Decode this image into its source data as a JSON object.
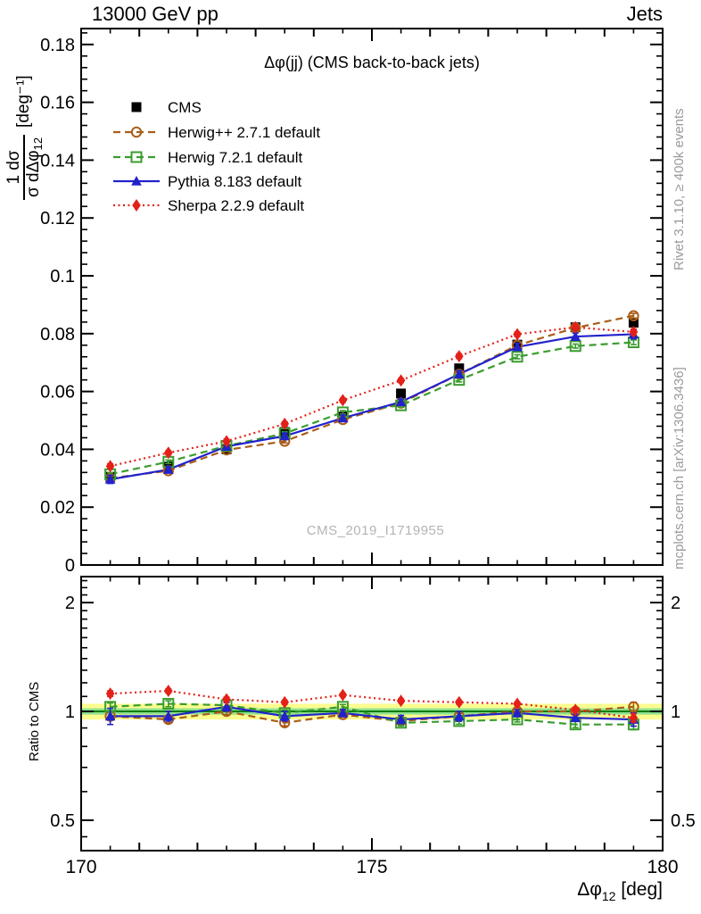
{
  "header": {
    "beam": "13000 GeV pp",
    "category": "Jets"
  },
  "side_notes": {
    "generator_info": "Rivet 3.1.10, ≥ 400k events",
    "source": "mcplots.cern.ch [arXiv:1306.3436]"
  },
  "watermark": "CMS_2019_I1719955",
  "axes": {
    "y_label": {
      "num": "1 dσ",
      "den_main": "σ dΔφ",
      "den_sub": "12",
      "units": "[deg⁻¹]"
    },
    "x_label": {
      "main": "Δφ",
      "sub": "12",
      "suffix": " [deg]"
    },
    "ratio_label": "Ratio to CMS"
  },
  "colors": {
    "cms": "#000000",
    "herwigpp": "#aa5d18",
    "herwig7": "#3b9c2e",
    "pythia": "#2222cc",
    "sherpa": "#e32119",
    "band_outer": "#fcfc8f",
    "band_inner": "#8fe18f",
    "reference_line": "#0b7d0b",
    "gray_text": "#9b9b9b"
  },
  "chart_data": [
    {
      "type": "line",
      "title": "Δφ(jj) (CMS back-to-back jets)",
      "xlabel": "Δφ_12 [deg]",
      "ylabel": "1/σ dσ/dΔφ_12 [deg^-1]",
      "xlim": [
        170,
        180
      ],
      "ylim": [
        0,
        0.1855
      ],
      "grid": false,
      "legend_position": "top-left-inside",
      "xticks": {
        "values": [
          170,
          175,
          180
        ],
        "labels": [
          "170",
          "175",
          "180"
        ]
      },
      "yticks": {
        "values": [
          0,
          0.02,
          0.04,
          0.06,
          0.08,
          0.1,
          0.12,
          0.14,
          0.16,
          0.18
        ],
        "labels": [
          "0",
          "0.02",
          "0.04",
          "0.06",
          "0.08",
          "0.1",
          "0.12",
          "0.14",
          "0.16",
          "0.18"
        ]
      },
      "x": [
        170.5,
        171.5,
        172.5,
        173.5,
        174.5,
        175.5,
        176.5,
        177.5,
        178.5,
        179.5
      ],
      "series": [
        {
          "name": "CMS",
          "color": "#000000",
          "marker": "filled-square",
          "line": "none",
          "values": [
            0.0305,
            0.034,
            0.04,
            0.046,
            0.0513,
            0.0593,
            0.068,
            0.0762,
            0.0822,
            0.0838
          ],
          "errors": [
            0.001,
            0.0009,
            0.0009,
            0.0009,
            0.001,
            0.0011,
            0.0012,
            0.0012,
            0.0013,
            0.0014
          ]
        },
        {
          "name": "Herwig++ 2.7.1 default",
          "color": "#aa5d18",
          "marker": "open-circle",
          "line": "dashed",
          "values": [
            0.03,
            0.0326,
            0.0398,
            0.0428,
            0.0503,
            0.056,
            0.066,
            0.076,
            0.082,
            0.0862
          ],
          "errors": [
            0.0006,
            0.0006,
            0.0006,
            0.0006,
            0.0006,
            0.0006,
            0.0007,
            0.0007,
            0.0007,
            0.0008
          ]
        },
        {
          "name": "Herwig 7.2.1 default",
          "color": "#3b9c2e",
          "marker": "open-square",
          "line": "dashed",
          "values": [
            0.0314,
            0.0357,
            0.0412,
            0.0455,
            0.0528,
            0.0552,
            0.064,
            0.072,
            0.0757,
            0.077
          ],
          "errors": [
            0.0006,
            0.0006,
            0.0006,
            0.0006,
            0.0006,
            0.0006,
            0.0007,
            0.0007,
            0.0007,
            0.0008
          ]
        },
        {
          "name": "Pythia 8.183 default",
          "color": "#2222cc",
          "marker": "filled-triangle",
          "line": "solid",
          "values": [
            0.0296,
            0.033,
            0.041,
            0.0446,
            0.0508,
            0.0564,
            0.066,
            0.0754,
            0.079,
            0.0798
          ],
          "errors": [
            0.0014,
            0.001,
            0.001,
            0.001,
            0.001,
            0.001,
            0.0012,
            0.0012,
            0.0012,
            0.0016
          ]
        },
        {
          "name": "Sherpa 2.2.9 default",
          "color": "#e32119",
          "marker": "filled-diamond",
          "line": "dotted",
          "values": [
            0.0342,
            0.0388,
            0.0428,
            0.0488,
            0.057,
            0.0638,
            0.0722,
            0.0798,
            0.0822,
            0.0806
          ],
          "errors": [
            0.0008,
            0.0007,
            0.0007,
            0.0007,
            0.0007,
            0.0007,
            0.0008,
            0.0008,
            0.0008,
            0.001
          ]
        }
      ]
    },
    {
      "type": "line",
      "title": "",
      "ylabel": "Ratio to CMS",
      "yscale": "log",
      "xlim": [
        170,
        180
      ],
      "ylim": [
        0.412,
        2.36
      ],
      "xticks": {
        "values": [
          170,
          175,
          180
        ],
        "labels": [
          "170",
          "175",
          "180"
        ]
      },
      "yticks": {
        "values": [
          0.5,
          1,
          2
        ],
        "labels": [
          "0.5",
          "1",
          "2"
        ]
      },
      "reference": {
        "line": 1,
        "inner_band": [
          0.98,
          1.02
        ],
        "outer_band": [
          0.95,
          1.05
        ]
      },
      "x": [
        170.5,
        171.5,
        172.5,
        173.5,
        174.5,
        175.5,
        176.5,
        177.5,
        178.5,
        179.5
      ],
      "series": [
        {
          "name": "Herwig++ 2.7.1 default",
          "color": "#aa5d18",
          "marker": "open-circle",
          "line": "dashed",
          "values": [
            0.97,
            0.95,
            1.0,
            0.93,
            0.98,
            0.94,
            0.97,
            1.0,
            1.0,
            1.03
          ],
          "errors": [
            0.025,
            0.02,
            0.02,
            0.018,
            0.015,
            0.018,
            0.018,
            0.015,
            0.018,
            0.03
          ]
        },
        {
          "name": "Herwig 7.2.1 default",
          "color": "#3b9c2e",
          "marker": "open-square",
          "line": "dashed",
          "values": [
            1.03,
            1.05,
            1.04,
            0.99,
            1.03,
            0.93,
            0.94,
            0.95,
            0.92,
            0.92
          ],
          "errors": [
            0.025,
            0.02,
            0.02,
            0.018,
            0.015,
            0.018,
            0.018,
            0.015,
            0.018,
            0.03
          ]
        },
        {
          "name": "Pythia 8.183 default",
          "color": "#2222cc",
          "marker": "filled-triangle",
          "line": "solid",
          "values": [
            0.97,
            0.97,
            1.03,
            0.97,
            0.99,
            0.95,
            0.97,
            0.99,
            0.96,
            0.95
          ],
          "errors": [
            0.05,
            0.03,
            0.028,
            0.03,
            0.022,
            0.025,
            0.03,
            0.022,
            0.022,
            0.04
          ]
        },
        {
          "name": "Sherpa 2.2.9 default",
          "color": "#e32119",
          "marker": "filled-diamond",
          "line": "dotted",
          "values": [
            1.12,
            1.14,
            1.08,
            1.06,
            1.11,
            1.07,
            1.06,
            1.05,
            1.01,
            0.96
          ],
          "errors": [
            0.02,
            0.015,
            0.015,
            0.013,
            0.012,
            0.013,
            0.013,
            0.012,
            0.015,
            0.025
          ]
        }
      ]
    }
  ]
}
